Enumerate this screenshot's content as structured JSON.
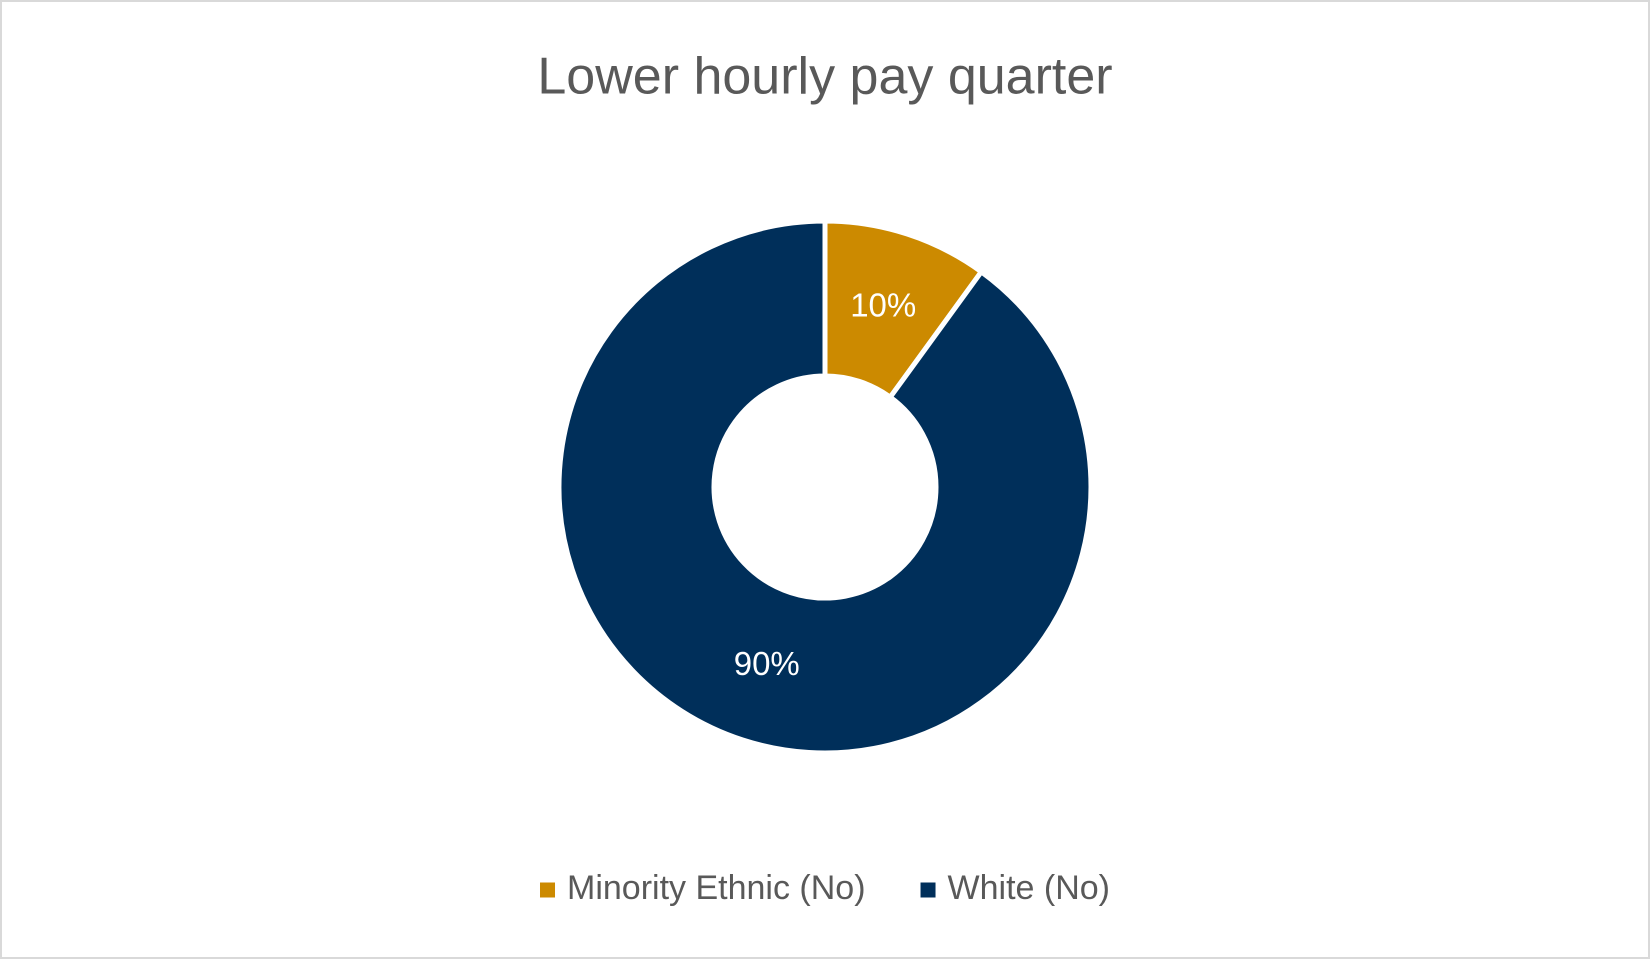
{
  "chart_data": {
    "type": "doughnut",
    "title": "Lower hourly pay quarter",
    "categories": [
      "Minority Ethnic (No)",
      "White (No)"
    ],
    "values": [
      10,
      90
    ],
    "value_labels": [
      "10%",
      "90%"
    ],
    "colors": [
      "#cc8a00",
      "#002f5a"
    ],
    "legend": "bottom"
  }
}
